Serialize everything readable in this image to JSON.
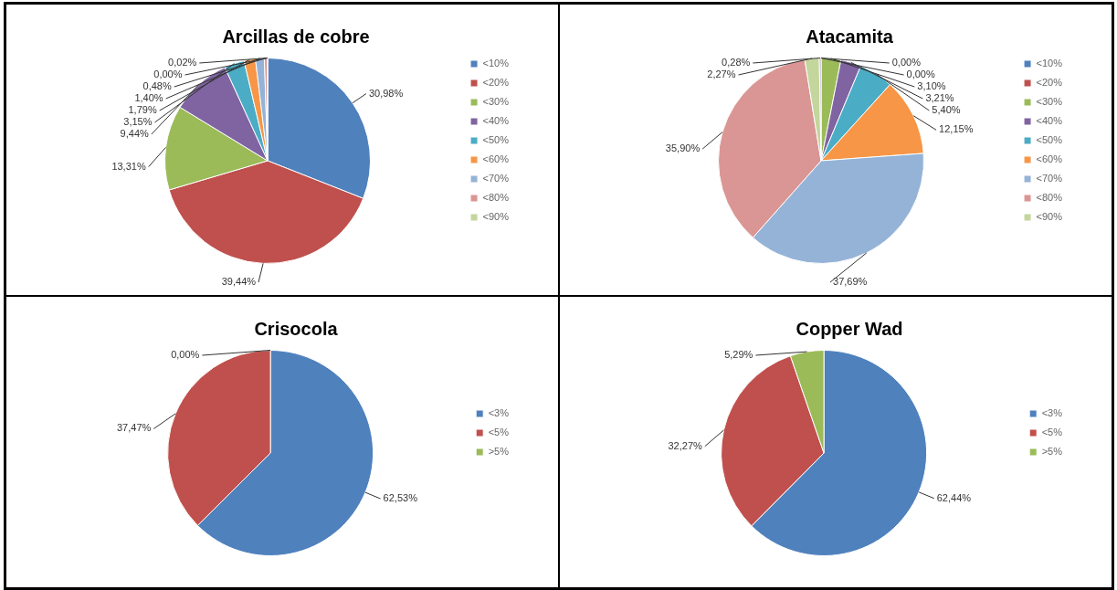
{
  "chart_data": [
    {
      "type": "pie",
      "title": "Arcillas de cobre",
      "categories": [
        "<10%",
        "<20%",
        "<30%",
        "<40%",
        "<50%",
        "<60%",
        "<70%",
        "<80%",
        "<90%",
        null
      ],
      "values": [
        30.98,
        39.44,
        13.31,
        9.44,
        3.15,
        1.79,
        1.4,
        0.48,
        0.0,
        0.02
      ],
      "value_labels": [
        "30,98%",
        "39,44%",
        "13,31%",
        "9,44%",
        "3,15%",
        "1,79%",
        "1,40%",
        "0,48%",
        "0,00%",
        "0,02%"
      ],
      "colors": [
        "#4f81bd",
        "#c0504d",
        "#9bbb59",
        "#8064a2",
        "#4bacc6",
        "#f79646",
        "#95b3d7",
        "#da9694",
        "#c3d69b",
        "#b2a1c7"
      ],
      "legend": "right"
    },
    {
      "type": "pie",
      "title": "Atacamita",
      "categories": [
        "<10%",
        "<20%",
        "<30%",
        "<40%",
        "<50%",
        "<60%",
        "<70%",
        "<80%",
        "<90%",
        null
      ],
      "values": [
        0.0,
        0.0,
        3.1,
        3.21,
        5.4,
        12.15,
        37.69,
        35.9,
        2.27,
        0.28
      ],
      "value_labels": [
        "0,00%",
        "0,00%",
        "3,10%",
        "3,21%",
        "5,40%",
        "12,15%",
        "37,69%",
        "35,90%",
        "2,27%",
        "0,28%"
      ],
      "colors": [
        "#4f81bd",
        "#c0504d",
        "#9bbb59",
        "#8064a2",
        "#4bacc6",
        "#f79646",
        "#95b3d7",
        "#da9694",
        "#c3d69b",
        "#b2a1c7"
      ],
      "legend": "right"
    },
    {
      "type": "pie",
      "title": "Crisocola",
      "categories": [
        "<3%",
        "<5%",
        ">5%"
      ],
      "values": [
        62.53,
        37.47,
        0.0
      ],
      "value_labels": [
        "62,53%",
        "37,47%",
        "0,00%"
      ],
      "colors": [
        "#4f81bd",
        "#c0504d",
        "#9bbb59"
      ],
      "legend": "right"
    },
    {
      "type": "pie",
      "title": "Copper Wad",
      "categories": [
        "<3%",
        "<5%",
        ">5%"
      ],
      "values": [
        62.44,
        32.27,
        5.29
      ],
      "value_labels": [
        "62,44%",
        "32,27%",
        "5,29%"
      ],
      "colors": [
        "#4f81bd",
        "#c0504d",
        "#9bbb59"
      ],
      "legend": "right"
    }
  ]
}
